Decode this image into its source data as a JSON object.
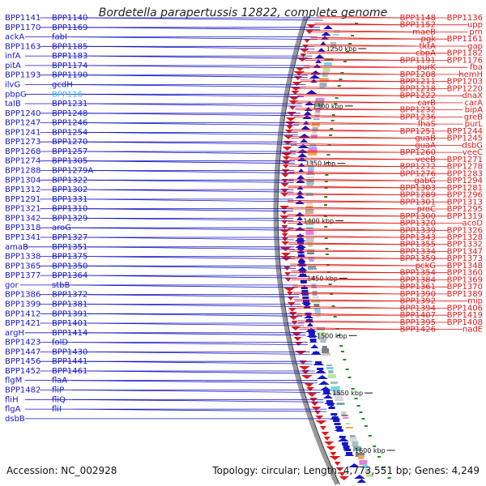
{
  "header": {
    "title": "Bordetella parapertussis 12822, complete genome"
  },
  "footer": {
    "accession": "Accession: NC_002928",
    "topology": "Topology: circular; Length: 4,773,551 bp; Genes: 4,249"
  },
  "colors": {
    "forward": "#1616c8",
    "reverse": "#e01818",
    "backbone": "#999999",
    "gc_tick": "#1e8c1e",
    "highlight": "#33bbee"
  },
  "scale_ticks": [
    {
      "label": "1250 kbp"
    },
    {
      "label": "1300 kbp"
    },
    {
      "label": "1350 kbp"
    },
    {
      "label": "1400 kbp"
    },
    {
      "label": "1450 kbp"
    },
    {
      "label": "1500 kbp"
    },
    {
      "label": "1550 kbp"
    },
    {
      "label": "1600 kbp"
    }
  ],
  "left_labels": [
    {
      "text": "BPP1141"
    },
    {
      "text": "BPP1140"
    },
    {
      "text": "BPP1170"
    },
    {
      "text": "BPP1169"
    },
    {
      "text": "ackA"
    },
    {
      "text": "fabI"
    },
    {
      "text": "BPP1163"
    },
    {
      "text": "BPP1185"
    },
    {
      "text": "infA"
    },
    {
      "text": "BPP1183"
    },
    {
      "text": "pitA"
    },
    {
      "text": "BPP1174"
    },
    {
      "text": "BPP1193"
    },
    {
      "text": "BPP1190"
    },
    {
      "text": "ilvG"
    },
    {
      "text": "gcdH"
    },
    {
      "text": "pbpG"
    },
    {
      "text": "BPP116",
      "highlight": true
    },
    {
      "text": "talB"
    },
    {
      "text": "BPP1231"
    },
    {
      "text": "BPP1240"
    },
    {
      "text": "BPP1248"
    },
    {
      "text": "BPP1247"
    },
    {
      "text": "BPP1246"
    },
    {
      "text": "BPP1241"
    },
    {
      "text": "BPP1254"
    },
    {
      "text": "BPP1273"
    },
    {
      "text": "BPP1270"
    },
    {
      "text": "BPP1268"
    },
    {
      "text": "BPP1257"
    },
    {
      "text": "BPP1274"
    },
    {
      "text": "BPP1305"
    },
    {
      "text": "BPP1288"
    },
    {
      "text": "BPP1279A"
    },
    {
      "text": "BPP1304"
    },
    {
      "text": "BPP1322"
    },
    {
      "text": "BPP1312"
    },
    {
      "text": "BPP1302"
    },
    {
      "text": "BPP1291"
    },
    {
      "text": "BPP1331"
    },
    {
      "text": "BPP1321"
    },
    {
      "text": "BPP1310"
    },
    {
      "text": "BPP1342"
    },
    {
      "text": "BPP1329"
    },
    {
      "text": "BPP1318"
    },
    {
      "text": "aroG"
    },
    {
      "text": "BPP1341"
    },
    {
      "text": "BPP1327"
    },
    {
      "text": "amaB"
    },
    {
      "text": "BPP1351"
    },
    {
      "text": "BPP1338"
    },
    {
      "text": "BPP1375"
    },
    {
      "text": "BPP1365"
    },
    {
      "text": "BPP1350"
    },
    {
      "text": "BPP1377"
    },
    {
      "text": "BPP1364"
    },
    {
      "text": "gor"
    },
    {
      "text": "stbB"
    },
    {
      "text": "BPP1386"
    },
    {
      "text": "BPP1372"
    },
    {
      "text": "BPP1399"
    },
    {
      "text": "BPP1381"
    },
    {
      "text": "BPP1412"
    },
    {
      "text": "BPP1391"
    },
    {
      "text": "BPP1421"
    },
    {
      "text": "BPP1401"
    },
    {
      "text": "argH"
    },
    {
      "text": "BPP1414"
    },
    {
      "text": "BPP1423"
    },
    {
      "text": "folD"
    },
    {
      "text": "BPP1447"
    },
    {
      "text": "BPP1430"
    },
    {
      "text": "BPP1456"
    },
    {
      "text": "BPP1441"
    },
    {
      "text": "BPP1452"
    },
    {
      "text": "BPP1461"
    },
    {
      "text": "flgM"
    },
    {
      "text": "flaA"
    },
    {
      "text": "BPP1482"
    },
    {
      "text": "fliP"
    },
    {
      "text": "fliH"
    },
    {
      "text": "fliQ"
    },
    {
      "text": "flgA"
    },
    {
      "text": "fliI"
    },
    {
      "text": "dsbB"
    }
  ],
  "right_labels": [
    {
      "text": "BPP1136"
    },
    {
      "text": "BPP1148"
    },
    {
      "text": "upp"
    },
    {
      "text": "BPP1152"
    },
    {
      "text": "prn"
    },
    {
      "text": "maeB"
    },
    {
      "text": "BPP1161"
    },
    {
      "text": "pgk"
    },
    {
      "text": "gap"
    },
    {
      "text": "tktA"
    },
    {
      "text": "BPP1182"
    },
    {
      "text": "cbpA"
    },
    {
      "text": "BPP1176"
    },
    {
      "text": "BPP1191"
    },
    {
      "text": "fba"
    },
    {
      "text": "purK"
    },
    {
      "text": "hemH"
    },
    {
      "text": "BPP1208"
    },
    {
      "text": "BPP1203"
    },
    {
      "text": "BPP1211"
    },
    {
      "text": "BPP1220"
    },
    {
      "text": "BPP1218"
    },
    {
      "text": "dnaX"
    },
    {
      "text": "BPP1222"
    },
    {
      "text": "carA"
    },
    {
      "text": "carB"
    },
    {
      "text": "bipA"
    },
    {
      "text": "BPP1232"
    },
    {
      "text": "greB"
    },
    {
      "text": "BPP1236"
    },
    {
      "text": "purL"
    },
    {
      "text": "fhaS"
    },
    {
      "text": "BPP1244"
    },
    {
      "text": "BPP1251"
    },
    {
      "text": "BPP1245"
    },
    {
      "text": "guaB"
    },
    {
      "text": "dsbG"
    },
    {
      "text": "guaA"
    },
    {
      "text": "veeC"
    },
    {
      "text": "BPP1260"
    },
    {
      "text": "BPP1271"
    },
    {
      "text": "veeB"
    },
    {
      "text": "BPP1278"
    },
    {
      "text": "BPP1272"
    },
    {
      "text": "BPP1283"
    },
    {
      "text": "BPP1276"
    },
    {
      "text": "BPP1294"
    },
    {
      "text": "gabG"
    },
    {
      "text": "BPP1281"
    },
    {
      "text": "BPP1303"
    },
    {
      "text": "BPP1296"
    },
    {
      "text": "BPP1289"
    },
    {
      "text": "BPP1313"
    },
    {
      "text": "BPP1301"
    },
    {
      "text": "BPP1295"
    },
    {
      "text": "proC"
    },
    {
      "text": "BPP1319"
    },
    {
      "text": "BPP1300"
    },
    {
      "text": "acoD"
    },
    {
      "text": "BPP1320"
    },
    {
      "text": "BPP1326"
    },
    {
      "text": "BPP1339"
    },
    {
      "text": "BPP1328"
    },
    {
      "text": "BPP1343"
    },
    {
      "text": "BPP1332"
    },
    {
      "text": "BPP1355"
    },
    {
      "text": "BPP1347"
    },
    {
      "text": "BPP1334"
    },
    {
      "text": "BPP1373"
    },
    {
      "text": "BPP1359"
    },
    {
      "text": "BPP1348"
    },
    {
      "text": "pckG"
    },
    {
      "text": "BPP1360"
    },
    {
      "text": "BPP1354"
    },
    {
      "text": "BPP1369"
    },
    {
      "text": "BPP1384"
    },
    {
      "text": "BPP1370"
    },
    {
      "text": "BPP1361"
    },
    {
      "text": "BPP1389"
    },
    {
      "text": "BPP1390"
    },
    {
      "text": "mip"
    },
    {
      "text": "BPP1392"
    },
    {
      "text": "BPP1406"
    },
    {
      "text": "BPP1394"
    },
    {
      "text": "BPP1419"
    },
    {
      "text": "BPP1407"
    },
    {
      "text": "BPP1408"
    },
    {
      "text": "BPP1395"
    },
    {
      "text": "nadE"
    },
    {
      "text": "BPP1426"
    }
  ]
}
